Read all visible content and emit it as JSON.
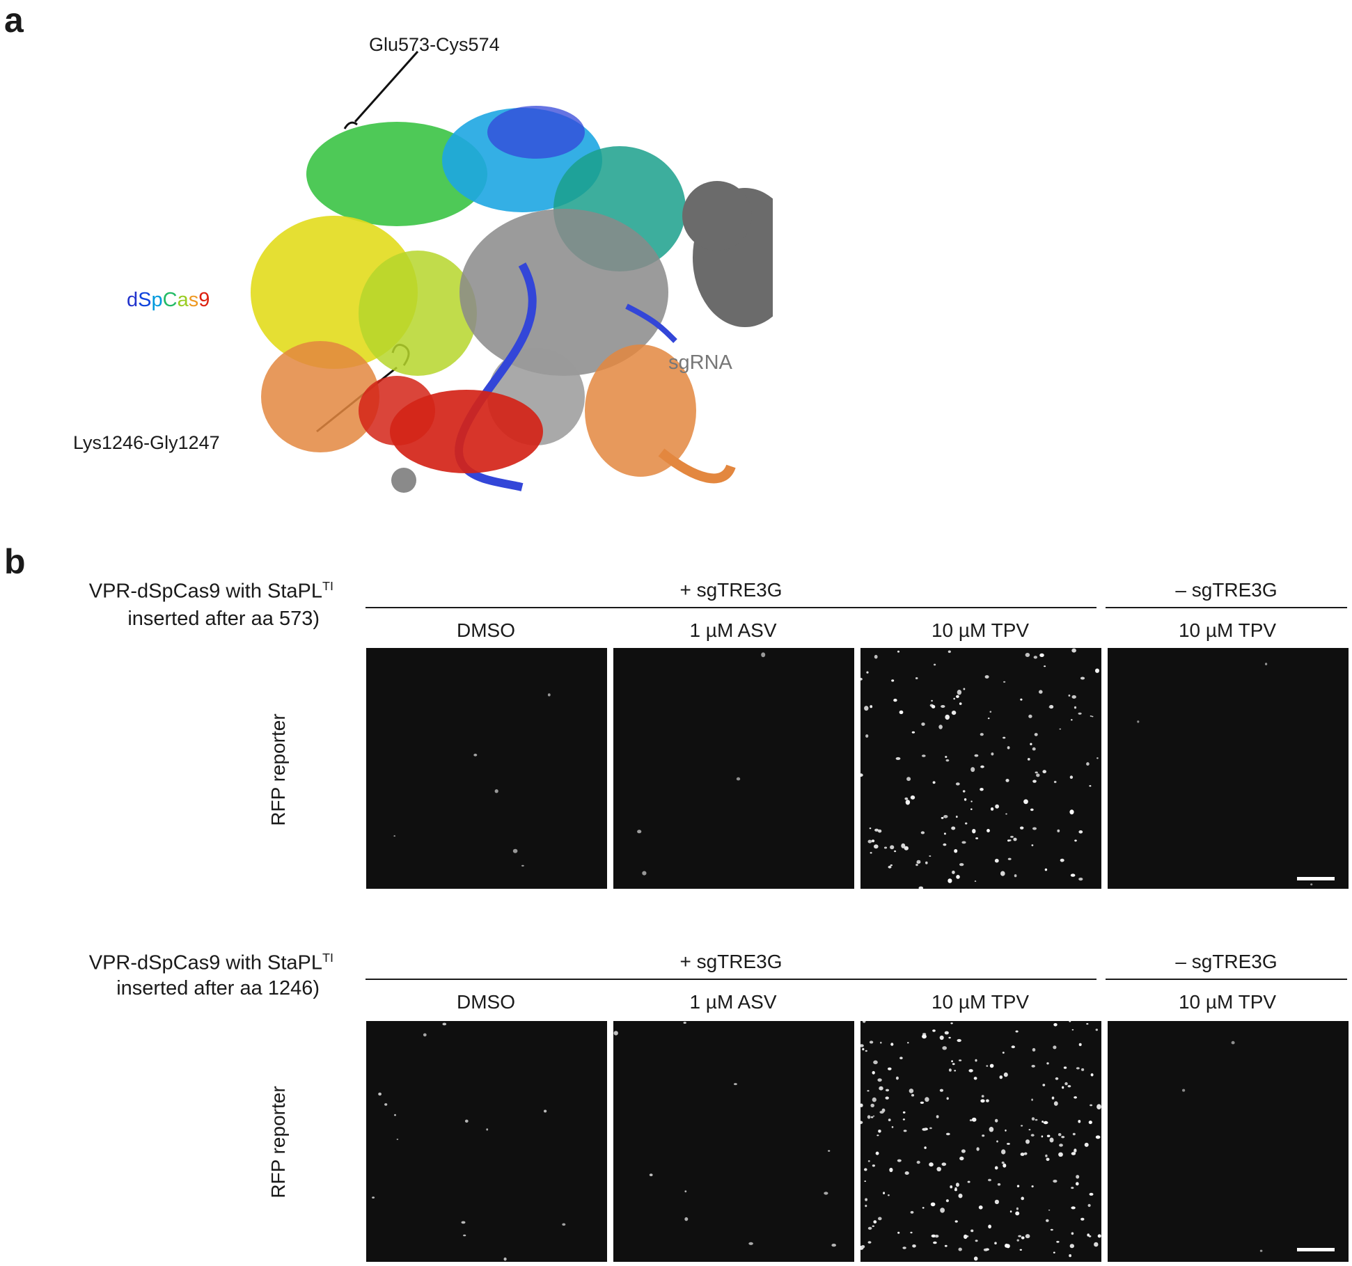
{
  "panel_a": {
    "letter": "a",
    "annotation_top": "Glu573-Cys574",
    "annotation_bottom": "Lys1246-Gly1247",
    "protein_label": [
      "d",
      "S",
      "p",
      "C",
      "a",
      "s",
      "9"
    ],
    "protein_label_colors": [
      "#2233cc",
      "#1144dd",
      "#0099dd",
      "#22bb66",
      "#99cc22",
      "#ee9922",
      "#dd2211"
    ],
    "rna_label": "sgRNA",
    "colors": {
      "blue": "#3346d8",
      "cyan": "#1ea6e2",
      "teal": "#1ba08c",
      "green": "#2fbf3a",
      "yellowgreen": "#b6d62c",
      "yellow": "#e2dc1d",
      "orange": "#e3873f",
      "red": "#d42418",
      "grey": "#8a8a8a"
    }
  },
  "panel_b": {
    "letter": "b",
    "rows": [
      {
        "title_line1": "VPR-dSpCas9 with StaPL",
        "title_sup": "TI",
        "title_line2": "inserted after aa 573)",
        "group_plus": "+ sgTRE3G",
        "group_minus": "– sgTRE3G",
        "columns": [
          "DMSO",
          "1 µM ASV",
          "10 µM TPV",
          "10 µM TPV"
        ],
        "ylabel": "RFP reporter"
      },
      {
        "title_line1": "VPR-dSpCas9 with StaPL",
        "title_sup": "TI",
        "title_line2": "inserted after aa 1246)",
        "group_plus": "+ sgTRE3G",
        "group_minus": "– sgTRE3G",
        "columns": [
          "DMSO",
          "1 µM ASV",
          "10 µM TPV",
          "10 µM TPV"
        ],
        "ylabel": "RFP reporter"
      }
    ]
  }
}
